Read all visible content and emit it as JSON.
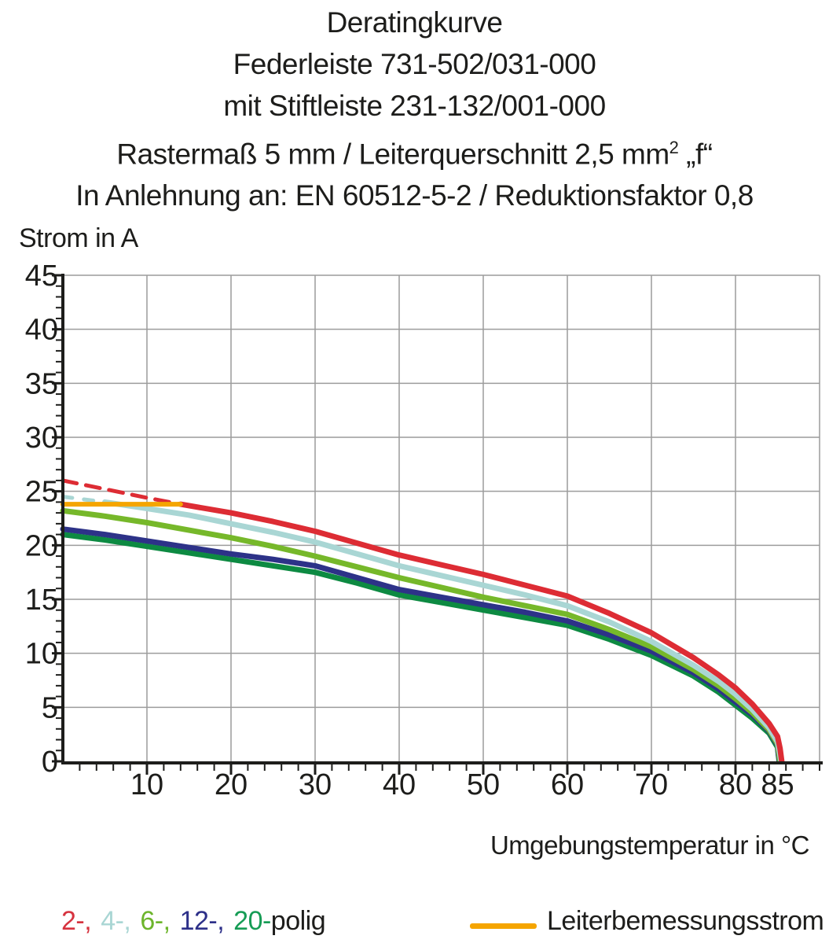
{
  "title": {
    "line1": "Deratingkurve",
    "line2": "Federleiste 731-502/031-000",
    "line3": "mit Stiftleiste 231-132/001-000",
    "line4_text": "Rastermaß 5 mm / Leiterquerschnitt 2,5 mm",
    "line4_sup": "2",
    "line4_suffix": " „f“",
    "line5": "In Anlehnung an: EN 60512-5-2 / Reduktionsfaktor 0,8"
  },
  "axes": {
    "y_title": "Strom in A",
    "x_title": "Umgebungstemperatur in °C"
  },
  "legend": {
    "poles": [
      {
        "label": "2-,",
        "color": "#d6333f"
      },
      {
        "label": "4-,",
        "color": "#a9d6d4"
      },
      {
        "label": "6-,",
        "color": "#6db52c"
      },
      {
        "label": "12-,",
        "color": "#2d3089"
      },
      {
        "label": "20-",
        "color": "#169c55"
      }
    ],
    "poles_suffix": "polig",
    "rated_label": "Leiterbemessungsstrom",
    "rated_color": "#f5a500"
  },
  "chart_data": {
    "type": "line",
    "title_lines": [
      "Deratingkurve",
      "Federleiste 731-502/031-000",
      "mit Stiftleiste 231-132/001-000",
      "Rastermaß 5 mm / Leiterquerschnitt 2,5 mm2 „f“",
      "In Anlehnung an: EN 60512-5-2 / Reduktionsfaktor 0,8"
    ],
    "xlabel": "Umgebungstemperatur in °C",
    "ylabel": "Strom in A",
    "xlim": [
      0,
      90
    ],
    "ylim": [
      0,
      45
    ],
    "grid": true,
    "grid_color": "#9c9c9c",
    "axis_color": "#1d1d1b",
    "x_grid_values": [
      10,
      20,
      30,
      40,
      50,
      60,
      70,
      80,
      90
    ],
    "y_grid_values": [
      5,
      10,
      15,
      20,
      25,
      30,
      35,
      40,
      45
    ],
    "x_tick_labels": [
      {
        "v": 10,
        "label": "10"
      },
      {
        "v": 20,
        "label": "20"
      },
      {
        "v": 30,
        "label": "30"
      },
      {
        "v": 40,
        "label": "40"
      },
      {
        "v": 50,
        "label": "50"
      },
      {
        "v": 60,
        "label": "60"
      },
      {
        "v": 70,
        "label": "70"
      },
      {
        "v": 80,
        "label": "80"
      },
      {
        "v": 85,
        "label": "85"
      }
    ],
    "y_tick_labels": [
      {
        "v": 0,
        "label": "0"
      },
      {
        "v": 5,
        "label": "5"
      },
      {
        "v": 10,
        "label": "10"
      },
      {
        "v": 15,
        "label": "15"
      },
      {
        "v": 20,
        "label": "20"
      },
      {
        "v": 25,
        "label": "25"
      },
      {
        "v": 30,
        "label": "30"
      },
      {
        "v": 35,
        "label": "35"
      },
      {
        "v": 40,
        "label": "40"
      },
      {
        "v": 45,
        "label": "45"
      }
    ],
    "x_minor_step": 2,
    "y_minor_step": 1,
    "series": [
      {
        "name": "20-polig",
        "color": "#0d8a42",
        "width": 7,
        "points": [
          [
            0,
            21.0
          ],
          [
            5,
            20.5
          ],
          [
            10,
            19.9
          ],
          [
            15,
            19.3
          ],
          [
            20,
            18.7
          ],
          [
            25,
            18.1
          ],
          [
            30,
            17.5
          ],
          [
            35,
            16.5
          ],
          [
            40,
            15.4
          ],
          [
            45,
            14.7
          ],
          [
            50,
            14.0
          ],
          [
            55,
            13.3
          ],
          [
            60,
            12.6
          ],
          [
            65,
            11.3
          ],
          [
            70,
            9.8
          ],
          [
            75,
            7.9
          ],
          [
            78,
            6.4
          ],
          [
            80,
            5.2
          ],
          [
            82,
            4.0
          ],
          [
            84,
            2.6
          ],
          [
            85,
            1.3
          ],
          [
            85.1,
            0.6
          ],
          [
            85.2,
            0
          ]
        ]
      },
      {
        "name": "12-polig",
        "color": "#2d3288",
        "width": 7,
        "points": [
          [
            0,
            21.5
          ],
          [
            5,
            21.0
          ],
          [
            10,
            20.4
          ],
          [
            15,
            19.8
          ],
          [
            20,
            19.2
          ],
          [
            25,
            18.7
          ],
          [
            30,
            18.1
          ],
          [
            35,
            17.0
          ],
          [
            40,
            15.9
          ],
          [
            45,
            15.2
          ],
          [
            50,
            14.5
          ],
          [
            55,
            13.8
          ],
          [
            60,
            13.0
          ],
          [
            65,
            11.7
          ],
          [
            70,
            10.2
          ],
          [
            75,
            8.2
          ],
          [
            78,
            6.7
          ],
          [
            80,
            5.5
          ],
          [
            82,
            4.3
          ],
          [
            84,
            2.8
          ],
          [
            85,
            1.5
          ],
          [
            85.1,
            0.7
          ],
          [
            85.25,
            0
          ]
        ]
      },
      {
        "name": "6-polig",
        "color": "#76b82a",
        "width": 7,
        "points": [
          [
            0,
            23.2
          ],
          [
            5,
            22.7
          ],
          [
            10,
            22.1
          ],
          [
            15,
            21.4
          ],
          [
            20,
            20.7
          ],
          [
            25,
            19.9
          ],
          [
            30,
            19.0
          ],
          [
            35,
            18.0
          ],
          [
            40,
            17.0
          ],
          [
            45,
            16.1
          ],
          [
            50,
            15.2
          ],
          [
            55,
            14.4
          ],
          [
            60,
            13.6
          ],
          [
            65,
            12.2
          ],
          [
            70,
            10.6
          ],
          [
            75,
            8.5
          ],
          [
            78,
            7.0
          ],
          [
            80,
            5.8
          ],
          [
            82,
            4.5
          ],
          [
            84,
            2.9
          ],
          [
            85,
            1.6
          ],
          [
            85.15,
            0.8
          ],
          [
            85.3,
            0
          ]
        ]
      },
      {
        "name": "4-polig",
        "color": "#a9d6d4",
        "width": 7,
        "dash_until": 5,
        "dash_pattern": [
          12,
          15
        ],
        "dash_width": 5,
        "points": [
          [
            0,
            24.5
          ],
          [
            2.5,
            24.25
          ],
          [
            5,
            24.0
          ],
          [
            10,
            23.4
          ],
          [
            15,
            22.8
          ],
          [
            20,
            22.0
          ],
          [
            25,
            21.2
          ],
          [
            30,
            20.3
          ],
          [
            35,
            19.2
          ],
          [
            40,
            18.1
          ],
          [
            45,
            17.2
          ],
          [
            50,
            16.3
          ],
          [
            55,
            15.4
          ],
          [
            60,
            14.4
          ],
          [
            65,
            12.9
          ],
          [
            70,
            11.1
          ],
          [
            75,
            8.9
          ],
          [
            78,
            7.4
          ],
          [
            80,
            6.2
          ],
          [
            82,
            4.8
          ],
          [
            84,
            3.1
          ],
          [
            85,
            1.8
          ],
          [
            85.2,
            1.0
          ],
          [
            85.4,
            0
          ]
        ]
      },
      {
        "name": "2-polig",
        "color": "#dd2c34",
        "width": 7,
        "dash_until": 14,
        "dash_pattern": [
          18,
          12
        ],
        "dash_width": 5,
        "points": [
          [
            0,
            26.0
          ],
          [
            5,
            25.2
          ],
          [
            10,
            24.4
          ],
          [
            14,
            23.8
          ],
          [
            20,
            23.0
          ],
          [
            25,
            22.2
          ],
          [
            30,
            21.3
          ],
          [
            35,
            20.2
          ],
          [
            40,
            19.1
          ],
          [
            45,
            18.2
          ],
          [
            50,
            17.3
          ],
          [
            55,
            16.3
          ],
          [
            60,
            15.3
          ],
          [
            65,
            13.7
          ],
          [
            70,
            11.9
          ],
          [
            75,
            9.6
          ],
          [
            78,
            8.0
          ],
          [
            80,
            6.8
          ],
          [
            82,
            5.3
          ],
          [
            84,
            3.5
          ],
          [
            85,
            2.3
          ],
          [
            85.3,
            1.2
          ],
          [
            85.5,
            0
          ]
        ]
      },
      {
        "name": "Leiterbemessungsstrom",
        "color": "#f5a500",
        "width": 6,
        "points": [
          [
            0,
            23.8
          ],
          [
            14,
            23.8
          ]
        ]
      }
    ]
  }
}
